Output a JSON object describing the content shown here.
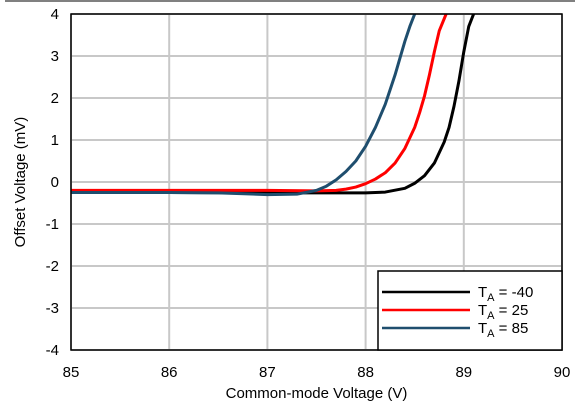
{
  "chart_data": {
    "type": "line",
    "title": "",
    "xlabel": "Common-mode Voltage (V)",
    "ylabel": "Offset Voltage (mV)",
    "xlim": [
      85,
      90
    ],
    "ylim": [
      -4,
      4
    ],
    "xticks": [
      "85",
      "86",
      "87",
      "88",
      "89",
      "90"
    ],
    "yticks": [
      "4",
      "3",
      "2",
      "1",
      "0",
      "-1",
      "-2",
      "-3",
      "-4"
    ],
    "grid": true,
    "legend_position": "bottom-right",
    "series": [
      {
        "name": "TA = -40",
        "legend": {
          "sym": "T",
          "sub": "A",
          "rest": " = -40"
        },
        "color": "#000000",
        "x": [
          85,
          86,
          87,
          87.5,
          87.8,
          88.0,
          88.2,
          88.4,
          88.5,
          88.6,
          88.7,
          88.8,
          88.85,
          88.9,
          88.95,
          89.0,
          89.05,
          89.1
        ],
        "y": [
          -0.25,
          -0.25,
          -0.26,
          -0.26,
          -0.26,
          -0.26,
          -0.24,
          -0.15,
          -0.03,
          0.15,
          0.45,
          0.95,
          1.3,
          1.8,
          2.4,
          3.1,
          3.7,
          4.0
        ]
      },
      {
        "name": "TA = 25",
        "legend": {
          "sym": "T",
          "sub": "A",
          "rest": " = 25"
        },
        "color": "#ff0000",
        "x": [
          85,
          86,
          87,
          87.5,
          87.7,
          87.8,
          87.9,
          88.0,
          88.1,
          88.2,
          88.3,
          88.4,
          88.5,
          88.55,
          88.6,
          88.65,
          88.7,
          88.75,
          88.82
        ],
        "y": [
          -0.2,
          -0.2,
          -0.2,
          -0.21,
          -0.2,
          -0.17,
          -0.12,
          -0.04,
          0.07,
          0.22,
          0.45,
          0.8,
          1.3,
          1.65,
          2.05,
          2.55,
          3.1,
          3.6,
          4.0
        ]
      },
      {
        "name": "TA = 85",
        "legend": {
          "sym": "T",
          "sub": "A",
          "rest": " = 85"
        },
        "color": "#1f4e6e",
        "x": [
          85,
          86,
          86.5,
          87,
          87.3,
          87.5,
          87.6,
          87.7,
          87.8,
          87.9,
          88.0,
          88.1,
          88.2,
          88.25,
          88.3,
          88.35,
          88.4,
          88.45,
          88.5
        ],
        "y": [
          -0.25,
          -0.25,
          -0.26,
          -0.3,
          -0.29,
          -0.2,
          -0.1,
          0.05,
          0.25,
          0.5,
          0.85,
          1.3,
          1.85,
          2.2,
          2.55,
          2.95,
          3.35,
          3.7,
          4.0
        ]
      }
    ]
  }
}
